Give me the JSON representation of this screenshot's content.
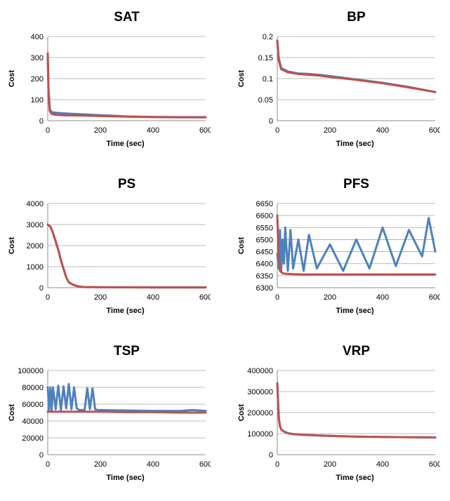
{
  "chart_data": [
    {
      "type": "line",
      "title": "SAT",
      "xlabel": "Time (sec)",
      "ylabel": "Cost",
      "xlim": [
        0,
        600
      ],
      "ylim": [
        0,
        400
      ],
      "xticks": [
        "0",
        "200",
        "400",
        "600"
      ],
      "yticks": [
        "0",
        "100",
        "200",
        "300",
        "400"
      ],
      "grid": true,
      "series": [
        {
          "color": "#4f81bd",
          "x": [
            0,
            3,
            8,
            15,
            30,
            60,
            100,
            140,
            180,
            220,
            260,
            300,
            400,
            500,
            600
          ],
          "y": [
            320,
            150,
            55,
            40,
            38,
            35,
            32,
            30,
            27,
            25,
            23,
            20,
            18,
            17,
            17
          ]
        },
        {
          "color": "#c0504d",
          "x": [
            0,
            3,
            8,
            15,
            30,
            60,
            100,
            150,
            200,
            300,
            400,
            500,
            600
          ],
          "y": [
            320,
            120,
            45,
            32,
            28,
            26,
            25,
            24,
            22,
            19,
            17,
            16,
            16
          ]
        }
      ]
    },
    {
      "type": "line",
      "title": "BP",
      "xlabel": "Time (sec)",
      "ylabel": "Cost",
      "xlim": [
        0,
        600
      ],
      "ylim": [
        0,
        0.2
      ],
      "xticks": [
        "0",
        "200",
        "400",
        "600"
      ],
      "yticks": [
        "0",
        "0.05",
        "0.1",
        "0.15",
        "0.2"
      ],
      "grid": true,
      "series": [
        {
          "color": "#4f81bd",
          "x": [
            0,
            5,
            15,
            40,
            80,
            120,
            160,
            200,
            300,
            400,
            500,
            600
          ],
          "y": [
            0.19,
            0.15,
            0.125,
            0.117,
            0.112,
            0.111,
            0.109,
            0.106,
            0.098,
            0.09,
            0.08,
            0.068
          ]
        },
        {
          "color": "#c0504d",
          "x": [
            0,
            5,
            15,
            40,
            80,
            120,
            160,
            200,
            300,
            400,
            500,
            600
          ],
          "y": [
            0.19,
            0.145,
            0.122,
            0.115,
            0.111,
            0.109,
            0.107,
            0.104,
            0.097,
            0.089,
            0.079,
            0.068
          ]
        }
      ]
    },
    {
      "type": "line",
      "title": "PS",
      "xlabel": "Time (sec)",
      "ylabel": "Cost",
      "xlim": [
        0,
        600
      ],
      "ylim": [
        0,
        4000
      ],
      "xticks": [
        "0",
        "200",
        "400",
        "600"
      ],
      "yticks": [
        "0",
        "1000",
        "2000",
        "3000",
        "4000"
      ],
      "grid": true,
      "series": [
        {
          "color": "#4f81bd",
          "x": [
            0,
            10,
            20,
            30,
            40,
            50,
            60,
            70,
            80,
            100,
            120,
            140,
            200,
            400,
            600
          ],
          "y": [
            3000,
            2900,
            2600,
            2200,
            1800,
            1300,
            900,
            500,
            250,
            120,
            50,
            30,
            20,
            15,
            15
          ]
        },
        {
          "color": "#c0504d",
          "x": [
            0,
            10,
            20,
            30,
            40,
            50,
            60,
            70,
            80,
            100,
            120,
            140,
            200,
            400,
            600
          ],
          "y": [
            3000,
            2900,
            2600,
            2200,
            1800,
            1300,
            900,
            500,
            250,
            120,
            50,
            30,
            20,
            15,
            15
          ]
        }
      ]
    },
    {
      "type": "line",
      "title": "PFS",
      "xlabel": "Time (sec)",
      "ylabel": "Cost",
      "xlim": [
        0,
        600
      ],
      "ylim": [
        6300,
        6650
      ],
      "xticks": [
        "0",
        "200",
        "400",
        "600"
      ],
      "yticks": [
        "6300",
        "6350",
        "6400",
        "6450",
        "6500",
        "6550",
        "6600",
        "6650"
      ],
      "grid": true,
      "series": [
        {
          "color": "#4f81bd",
          "x": [
            0,
            5,
            10,
            15,
            20,
            25,
            30,
            40,
            50,
            60,
            80,
            100,
            120,
            150,
            200,
            250,
            300,
            350,
            400,
            450,
            500,
            550,
            575,
            600
          ],
          "y": [
            6440,
            6380,
            6540,
            6370,
            6500,
            6400,
            6550,
            6370,
            6540,
            6380,
            6500,
            6370,
            6520,
            6380,
            6480,
            6370,
            6500,
            6380,
            6550,
            6390,
            6540,
            6430,
            6590,
            6450
          ]
        },
        {
          "color": "#c0504d",
          "x": [
            0,
            5,
            10,
            20,
            30,
            60,
            100,
            200,
            300,
            400,
            500,
            600
          ],
          "y": [
            6600,
            6420,
            6370,
            6360,
            6358,
            6356,
            6355,
            6355,
            6355,
            6355,
            6355,
            6355
          ]
        }
      ]
    },
    {
      "type": "line",
      "title": "TSP",
      "xlabel": "Time (sec)",
      "ylabel": "Cost",
      "xlim": [
        0,
        600
      ],
      "ylim": [
        0,
        100000
      ],
      "xticks": [
        "0",
        "200",
        "400",
        "600"
      ],
      "yticks": [
        "0",
        "20000",
        "40000",
        "60000",
        "80000",
        "100000"
      ],
      "grid": true,
      "series": [
        {
          "color": "#4f81bd",
          "x": [
            0,
            5,
            10,
            15,
            20,
            30,
            40,
            50,
            60,
            70,
            80,
            90,
            100,
            110,
            120,
            140,
            150,
            160,
            170,
            180,
            190,
            200,
            300,
            400,
            500,
            550,
            600
          ],
          "y": [
            80000,
            53000,
            80000,
            53000,
            80000,
            54000,
            82000,
            53000,
            81000,
            55000,
            84000,
            54000,
            80000,
            55000,
            53000,
            53000,
            79000,
            54000,
            79000,
            54000,
            53000,
            53000,
            52500,
            52000,
            52000,
            53000,
            52000
          ]
        },
        {
          "color": "#c0504d",
          "x": [
            0,
            50,
            100,
            200,
            300,
            400,
            500,
            600
          ],
          "y": [
            51000,
            51000,
            51000,
            51000,
            50500,
            50500,
            50000,
            50000
          ]
        }
      ]
    },
    {
      "type": "line",
      "title": "VRP",
      "xlabel": "Time (sec)",
      "ylabel": "Cost",
      "xlim": [
        0,
        600
      ],
      "ylim": [
        0,
        400000
      ],
      "xticks": [
        "0",
        "200",
        "400",
        "600"
      ],
      "yticks": [
        "0",
        "100000",
        "200000",
        "300000",
        "400000"
      ],
      "grid": true,
      "series": [
        {
          "color": "#4f81bd",
          "x": [
            0,
            3,
            6,
            10,
            15,
            25,
            40,
            60,
            100,
            200,
            300,
            400,
            500,
            600
          ],
          "y": [
            340000,
            250000,
            170000,
            135000,
            120000,
            110000,
            102000,
            98000,
            94000,
            89000,
            86000,
            84000,
            83000,
            82000
          ]
        },
        {
          "color": "#c0504d",
          "x": [
            0,
            3,
            6,
            10,
            15,
            25,
            40,
            60,
            100,
            200,
            300,
            400,
            500,
            600
          ],
          "y": [
            340000,
            250000,
            170000,
            135000,
            120000,
            110000,
            102000,
            98000,
            94000,
            89000,
            86000,
            84000,
            83000,
            82000
          ]
        }
      ]
    }
  ]
}
